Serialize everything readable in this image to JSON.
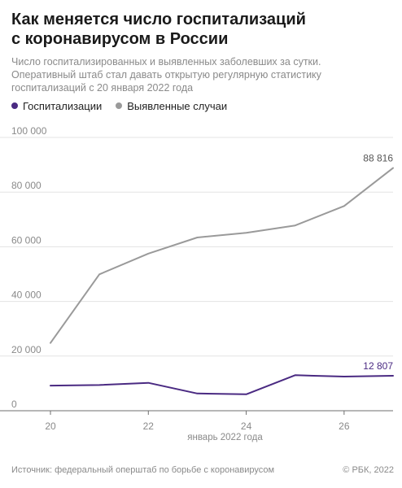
{
  "header": {
    "title_line1": "Как меняется число госпитализаций",
    "title_line2": "с коронавирусом в России",
    "subtitle_line1": "Число госпитализированных и выявленных заболевших за сутки.",
    "subtitle_line2": "Оперативный штаб стал давать открытую регулярную статистику",
    "subtitle_line3": "госпитализаций с 20 января 2022 года"
  },
  "legend": [
    {
      "label": "Госпитализации",
      "color": "#4a2a82"
    },
    {
      "label": "Выявленные случаи",
      "color": "#9a9a9a"
    }
  ],
  "chart_data": {
    "type": "line",
    "x": [
      20,
      21,
      22,
      23,
      24,
      25,
      26,
      27
    ],
    "xticks": [
      20,
      22,
      24,
      26
    ],
    "xlabel": "январь 2022 года",
    "ylabel": "",
    "ylim": [
      0,
      100000
    ],
    "yticks": [
      0,
      20000,
      40000,
      60000,
      80000,
      100000
    ],
    "ytick_labels": [
      "0",
      "20 000",
      "40 000",
      "60 000",
      "80 000",
      "100 000"
    ],
    "grid": true,
    "series": [
      {
        "name": "Госпитализации",
        "color": "#4a2a82",
        "values": [
          9200,
          9400,
          10200,
          6300,
          6000,
          13000,
          12500,
          12807
        ],
        "end_label": "12 807"
      },
      {
        "name": "Выявленные случаи",
        "color": "#9a9a9a",
        "values": [
          24800,
          49900,
          57500,
          63400,
          65100,
          67800,
          74900,
          88816
        ],
        "end_label": "88 816"
      }
    ]
  },
  "footer": {
    "source": "Источник: федеральный оперштаб по борьбе с коронавирусом",
    "copyright": "© РБК, 2022"
  }
}
